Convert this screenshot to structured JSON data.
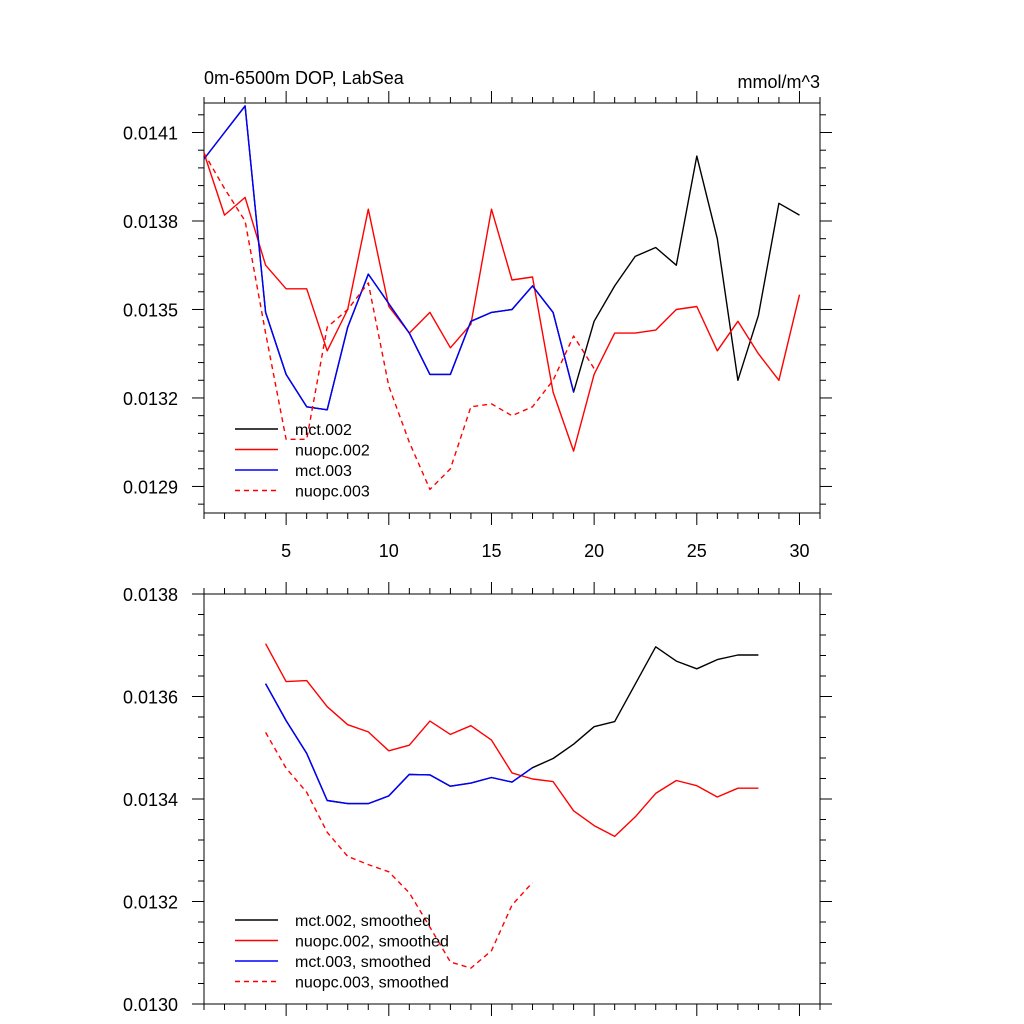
{
  "chart_data": [
    {
      "type": "line",
      "title": "0m-6500m DOP, LabSea",
      "units": "mmol/m^3",
      "xlim": [
        1,
        31
      ],
      "ylim": [
        0.01281,
        0.0142
      ],
      "x_ticks": [
        5,
        10,
        15,
        20,
        25,
        30
      ],
      "x_tick_labels": [
        "5",
        "10",
        "15",
        "20",
        "25",
        "30"
      ],
      "y_ticks": [
        0.0129,
        0.0132,
        0.0135,
        0.0138,
        0.0141
      ],
      "y_tick_labels": [
        "0.0129",
        "0.0132",
        "0.0135",
        "0.0138",
        "0.0141"
      ],
      "series": [
        {
          "name": "mct.002",
          "color": "#000000",
          "dash": "solid",
          "x": [
            1,
            2,
            3,
            4,
            5,
            6,
            7,
            8,
            9,
            10,
            11,
            12,
            13,
            14,
            15,
            16,
            17,
            18,
            19,
            20,
            21,
            22,
            23,
            24,
            25,
            26,
            27,
            28,
            29,
            30
          ],
          "y": [
            0.01401,
            0.0141,
            0.01419,
            0.01349,
            0.01328,
            0.01317,
            0.01316,
            0.01344,
            0.01362,
            0.01352,
            0.01342,
            0.01328,
            0.01328,
            0.01346,
            0.01349,
            0.0135,
            0.01358,
            0.01349,
            0.01322,
            0.01346,
            0.01358,
            0.01368,
            0.01371,
            0.01365,
            0.01402,
            0.01374,
            0.01326,
            0.01348,
            0.01386,
            0.01382
          ]
        },
        {
          "name": "nuopc.002",
          "color": "#ff0000",
          "dash": "solid",
          "x": [
            1,
            2,
            3,
            4,
            5,
            6,
            7,
            8,
            9,
            10,
            11,
            12,
            13,
            14,
            15,
            16,
            17,
            18,
            19,
            20,
            21,
            22,
            23,
            24,
            25,
            26,
            27,
            28,
            29,
            30
          ],
          "y": [
            0.01403,
            0.01382,
            0.01388,
            0.01365,
            0.01357,
            0.01357,
            0.01336,
            0.0135,
            0.01384,
            0.01351,
            0.01342,
            0.01349,
            0.01337,
            0.01345,
            0.01384,
            0.0136,
            0.01361,
            0.01322,
            0.01302,
            0.01328,
            0.01342,
            0.01342,
            0.01343,
            0.0135,
            0.01351,
            0.01336,
            0.01346,
            0.01335,
            0.01326,
            0.01355
          ]
        },
        {
          "name": "mct.003",
          "color": "#0000ff",
          "dash": "solid",
          "x": [
            1,
            2,
            3,
            4,
            5,
            6,
            7,
            8,
            9,
            10,
            11,
            12,
            13,
            14,
            15,
            16,
            17,
            18,
            19
          ],
          "y": [
            0.01401,
            0.0141,
            0.01419,
            0.01349,
            0.01328,
            0.01317,
            0.01316,
            0.01344,
            0.01362,
            0.01352,
            0.01342,
            0.01328,
            0.01328,
            0.01346,
            0.01349,
            0.0135,
            0.01358,
            0.01349,
            0.01322
          ]
        },
        {
          "name": "nuopc.003",
          "color": "#ff0000",
          "dash": "dashed",
          "x": [
            1,
            2,
            3,
            4,
            5,
            6,
            7,
            8,
            9,
            10,
            11,
            12,
            13,
            14,
            15,
            16,
            17,
            18,
            19,
            20
          ],
          "y": [
            0.01403,
            0.01391,
            0.0138,
            0.01342,
            0.01306,
            0.01306,
            0.01344,
            0.0135,
            0.01359,
            0.01324,
            0.01305,
            0.01289,
            0.01296,
            0.01317,
            0.01318,
            0.01314,
            0.01317,
            0.01326,
            0.01341,
            0.0133
          ]
        }
      ]
    },
    {
      "type": "line",
      "title": "",
      "xlim": [
        1,
        31
      ],
      "ylim": [
        0.013,
        0.0138
      ],
      "x_ticks": [
        5,
        10,
        15,
        20,
        25,
        30
      ],
      "x_tick_labels": [],
      "y_ticks": [
        0.013,
        0.0132,
        0.0134,
        0.0136,
        0.0138
      ],
      "y_tick_labels": [
        "0.0130",
        "0.0132",
        "0.0134",
        "0.0136",
        "0.0138"
      ],
      "series": [
        {
          "name": "mct.002, smoothed",
          "color": "#000000",
          "dash": "solid",
          "x": [
            4,
            5,
            6,
            7,
            8,
            9,
            10,
            11,
            12,
            13,
            14,
            15,
            16,
            17,
            18,
            19,
            20,
            21,
            22,
            23,
            24,
            25,
            26,
            27,
            28
          ],
          "y": [
            0.013625,
            0.013553,
            0.013489,
            0.013397,
            0.013391,
            0.013391,
            0.013406,
            0.013448,
            0.013447,
            0.013425,
            0.013431,
            0.013442,
            0.013433,
            0.013461,
            0.013479,
            0.013507,
            0.013541,
            0.013551,
            0.013624,
            0.013697,
            0.013669,
            0.013654,
            0.013672,
            0.013681,
            0.013681
          ]
        },
        {
          "name": "nuopc.002, smoothed",
          "color": "#ff0000",
          "dash": "solid",
          "x": [
            4,
            5,
            6,
            7,
            8,
            9,
            10,
            11,
            12,
            13,
            14,
            15,
            16,
            17,
            18,
            19,
            20,
            21,
            22,
            23,
            24,
            25,
            26,
            27,
            28
          ],
          "y": [
            0.013703,
            0.013629,
            0.013631,
            0.01358,
            0.013545,
            0.013531,
            0.013494,
            0.013505,
            0.013552,
            0.013526,
            0.013543,
            0.013515,
            0.013451,
            0.013439,
            0.013434,
            0.013377,
            0.013348,
            0.013327,
            0.013365,
            0.013411,
            0.013436,
            0.013426,
            0.013404,
            0.013421,
            0.013421
          ]
        },
        {
          "name": "mct.003, smoothed",
          "color": "#0000ff",
          "dash": "solid",
          "x": [
            4,
            5,
            6,
            7,
            8,
            9,
            10,
            11,
            12,
            13,
            14,
            15,
            16,
            17
          ],
          "y": [
            0.013625,
            0.013553,
            0.013489,
            0.013397,
            0.013391,
            0.013391,
            0.013406,
            0.013448,
            0.013447,
            0.013425,
            0.013431,
            0.013442,
            0.013433,
            0.013461
          ]
        },
        {
          "name": "nuopc.003, smoothed",
          "color": "#ff0000",
          "dash": "dashed",
          "x": [
            4,
            5,
            6,
            7,
            8,
            9,
            10,
            11,
            12,
            13,
            14,
            15,
            16,
            17
          ],
          "y": [
            0.01353,
            0.01346,
            0.013413,
            0.013335,
            0.013288,
            0.013272,
            0.013258,
            0.013217,
            0.01315,
            0.013082,
            0.01307,
            0.013104,
            0.013193,
            0.013237
          ]
        }
      ]
    }
  ]
}
